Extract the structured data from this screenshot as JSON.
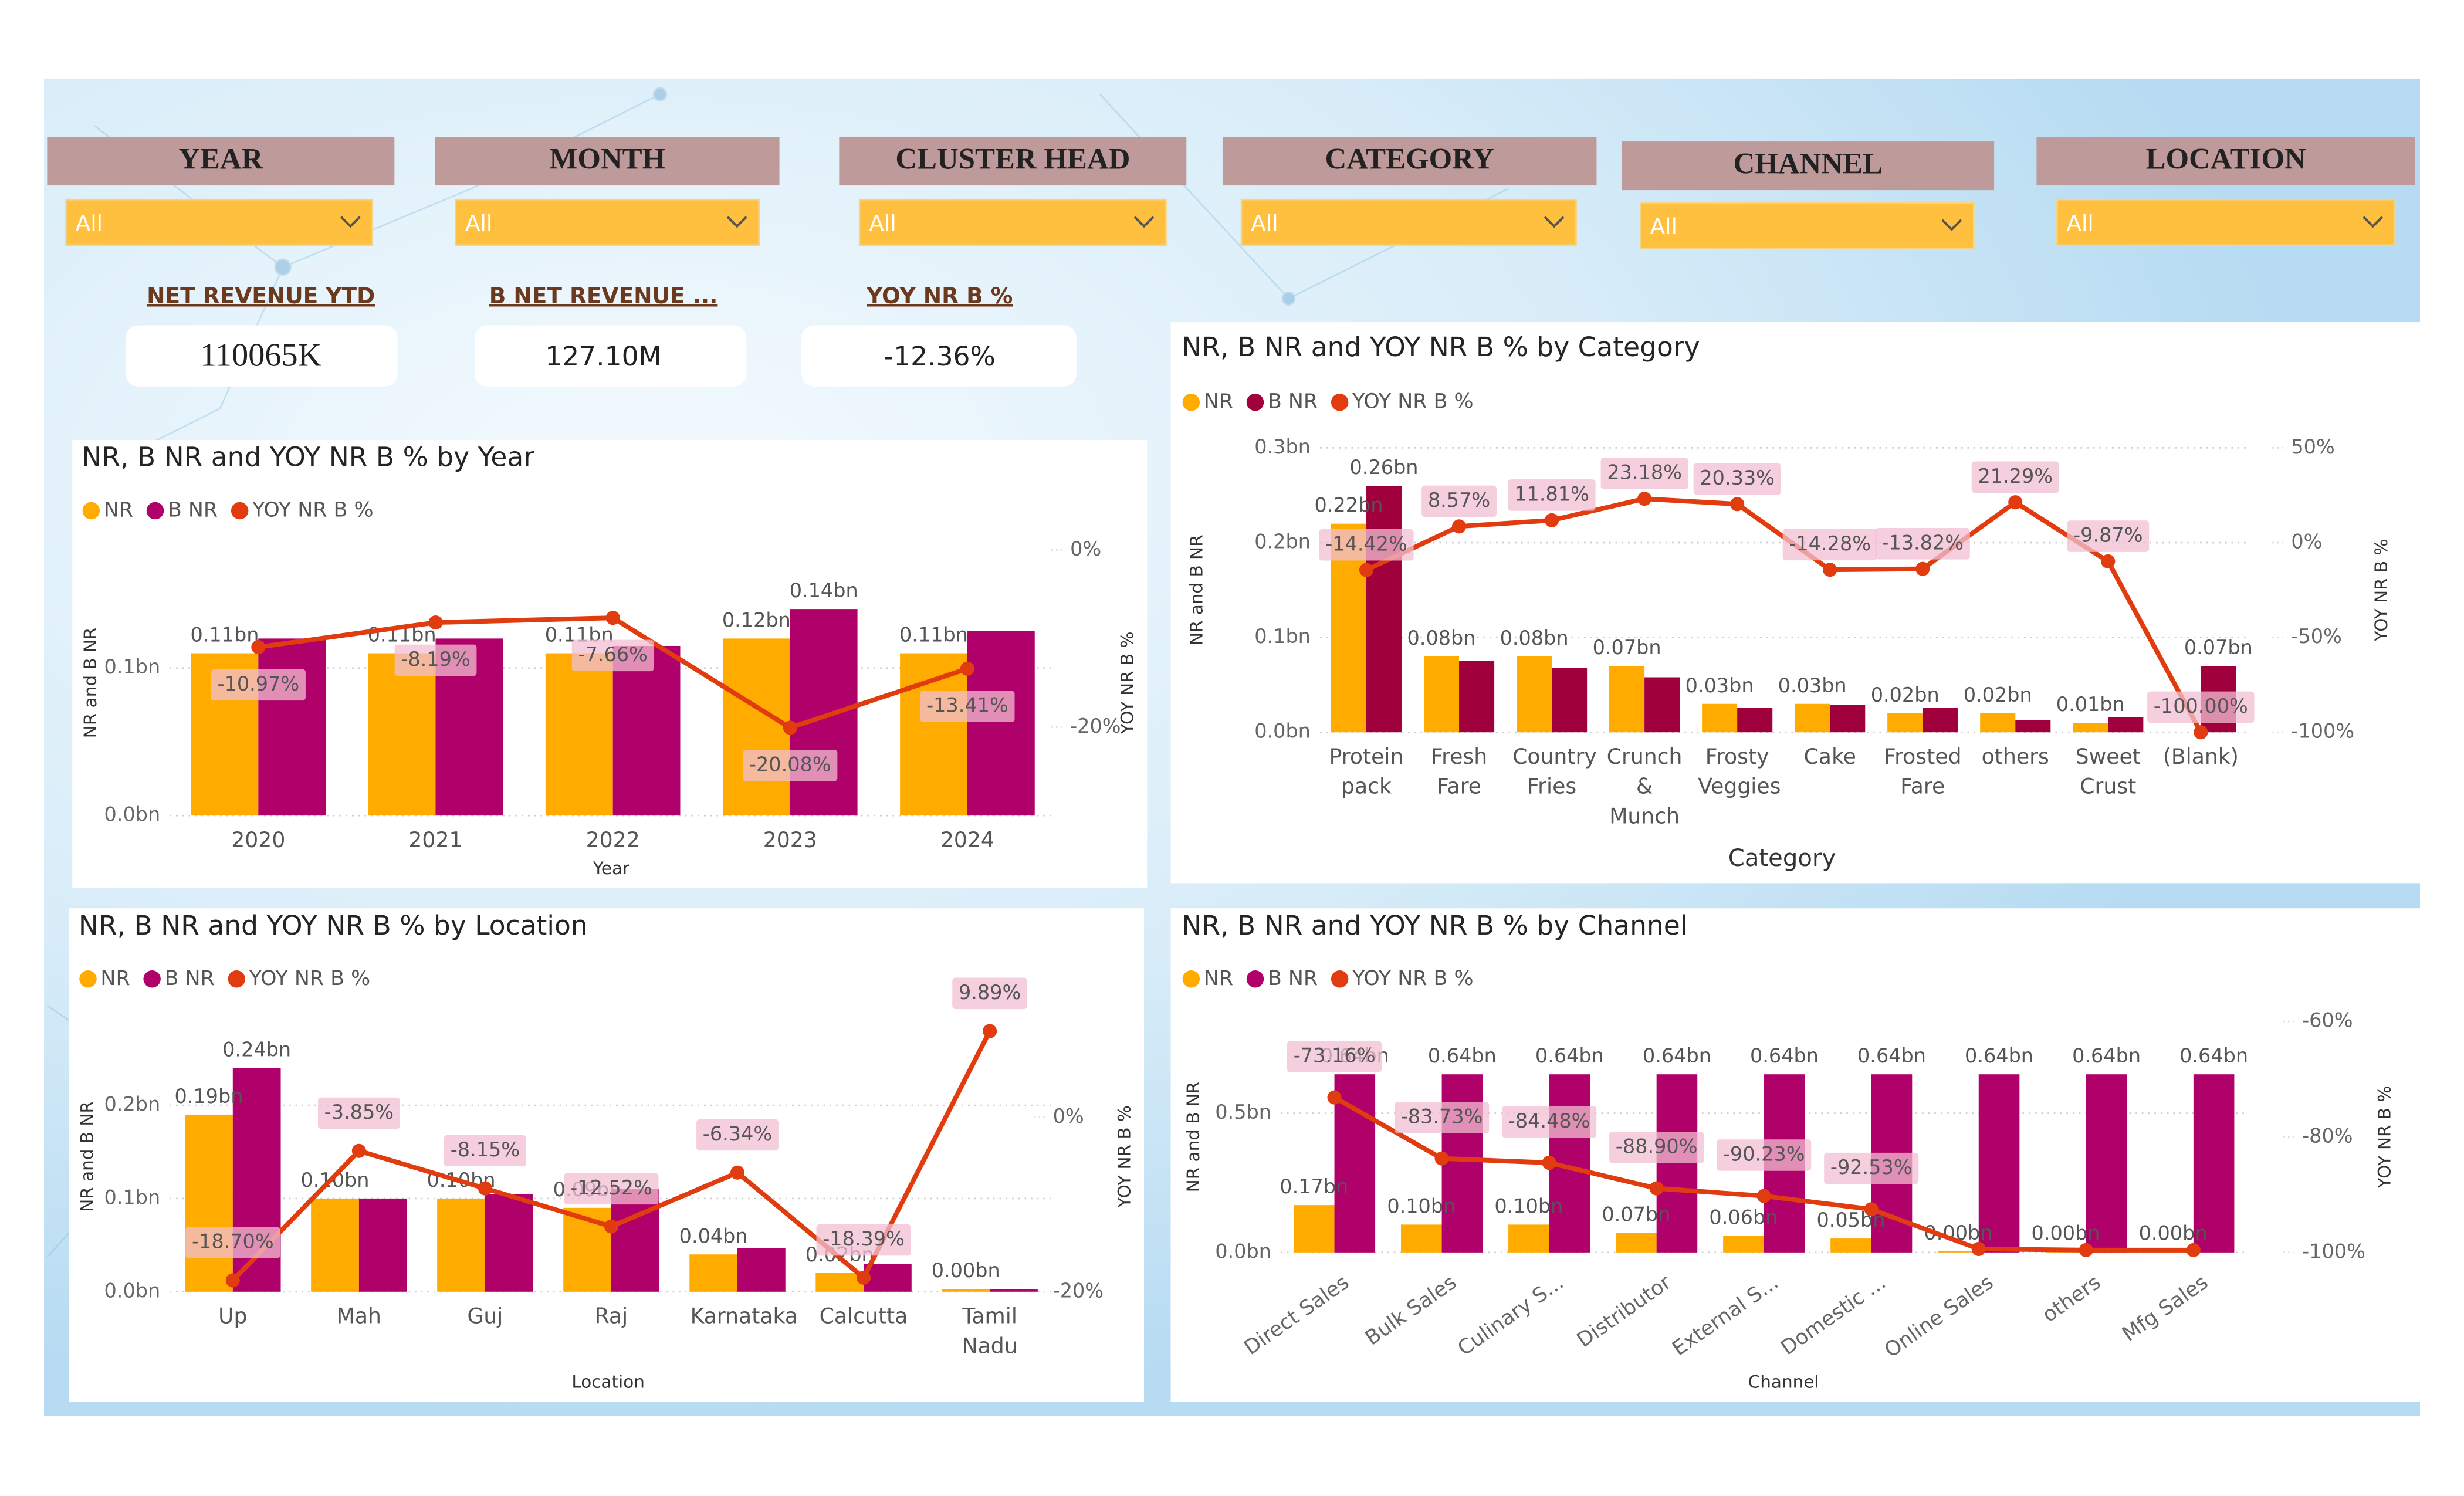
{
  "filters": [
    {
      "label": "YEAR",
      "value": "All"
    },
    {
      "label": "MONTH",
      "value": "All"
    },
    {
      "label": "CLUSTER HEAD",
      "value": "All"
    },
    {
      "label": "CATEGORY",
      "value": "All"
    },
    {
      "label": "CHANNEL",
      "value": "All"
    },
    {
      "label": "LOCATION",
      "value": "All"
    }
  ],
  "kpis": [
    {
      "label": "NET REVENUE YTD",
      "value": "110065K"
    },
    {
      "label": "B NET REVENUE ...",
      "value": "127.10M"
    },
    {
      "label": "YOY NR B %",
      "value": "-12.36%"
    }
  ],
  "chart_data": [
    {
      "type": "combo",
      "title": "NR, B NR and YOY NR B % by Year",
      "x_label": "Year",
      "y_label": "NR and B NR",
      "y2_label": "YOY NR B %",
      "categories": [
        "2020",
        "2021",
        "2022",
        "2023",
        "2024"
      ],
      "series": [
        {
          "name": "NR",
          "color": "#FFAB00",
          "values": [
            0.11,
            0.11,
            0.11,
            0.12,
            0.11
          ],
          "value_labels": [
            "0.11bn",
            "0.11bn",
            "0.11bn",
            "0.12bn",
            "0.11bn"
          ]
        },
        {
          "name": "B NR",
          "color": "#B0006A",
          "values": [
            0.12,
            0.12,
            0.115,
            0.14,
            0.125
          ],
          "value_labels": [
            null,
            null,
            null,
            "0.14bn",
            null
          ]
        },
        {
          "name": "YOY NR B %",
          "color": "#E03C0F",
          "axis": "y2",
          "values": [
            -10.97,
            -8.19,
            -7.66,
            -20.08,
            -13.41
          ],
          "value_labels": [
            "-10.97%",
            "-8.19%",
            "-7.66%",
            "-20.08%",
            "-13.41%"
          ]
        }
      ],
      "ylim": [
        0,
        0.18
      ],
      "yticks": [
        {
          "value": 0,
          "label": "0.0bn"
        },
        {
          "value": 0.1,
          "label": "0.1bn"
        }
      ],
      "y2lim": [
        -30,
        0
      ],
      "y2ticks": [
        {
          "value": 0,
          "label": "0%"
        },
        {
          "value": -20,
          "label": "-20%"
        }
      ],
      "grid": true
    },
    {
      "type": "combo",
      "title": "NR, B NR and YOY NR B % by Category",
      "x_label": "Category",
      "y_label": "NR and B NR",
      "y2_label": "YOY NR B %",
      "categories": [
        "Protein pack",
        "Fresh Fare",
        "Country Fries",
        "Crunch & Munch",
        "Frosty Veggies",
        "Cake",
        "Frosted Fare",
        "others",
        "Sweet Crust",
        "(Blank)"
      ],
      "series": [
        {
          "name": "NR",
          "color": "#FFAB00",
          "values": [
            0.22,
            0.08,
            0.08,
            0.07,
            0.03,
            0.03,
            0.02,
            0.02,
            0.01,
            null
          ],
          "value_labels": [
            "0.22bn",
            "0.08bn",
            "0.08bn",
            "0.07bn",
            "0.03bn",
            "0.03bn",
            "0.02bn",
            "0.02bn",
            "0.01bn",
            null
          ]
        },
        {
          "name": "B NR",
          "color": "#A0003C",
          "values": [
            0.26,
            0.075,
            0.068,
            0.058,
            0.026,
            0.029,
            0.026,
            0.013,
            0.016,
            0.07
          ],
          "value_labels": [
            "0.26bn",
            null,
            null,
            null,
            null,
            null,
            null,
            null,
            null,
            "0.07bn"
          ]
        },
        {
          "name": "YOY NR B %",
          "color": "#E03C0F",
          "axis": "y2",
          "values": [
            -14.42,
            8.57,
            11.81,
            23.18,
            20.33,
            -14.28,
            -13.82,
            21.29,
            -9.87,
            -100
          ],
          "value_labels": [
            "-14.42%",
            "8.57%",
            "11.81%",
            "23.18%",
            "20.33%",
            "-14.28%",
            "-13.82%",
            "21.29%",
            "-9.87%",
            "-100.00%"
          ]
        }
      ],
      "ylim": [
        0,
        0.3
      ],
      "yticks": [
        {
          "value": 0,
          "label": "0.0bn"
        },
        {
          "value": 0.1,
          "label": "0.1bn"
        },
        {
          "value": 0.2,
          "label": "0.2bn"
        },
        {
          "value": 0.3,
          "label": "0.3bn"
        }
      ],
      "y2lim": [
        -100,
        50
      ],
      "y2ticks": [
        {
          "value": 50,
          "label": "50%"
        },
        {
          "value": 0,
          "label": "0%"
        },
        {
          "value": -50,
          "label": "-50%"
        },
        {
          "value": -100,
          "label": "-100%"
        }
      ],
      "grid": true
    },
    {
      "type": "combo",
      "title": "NR, B NR and YOY NR B % by Location",
      "x_label": "Location",
      "y_label": "NR and B NR",
      "y2_label": "YOY NR B %",
      "categories": [
        "Up",
        "Mah",
        "Guj",
        "Raj",
        "Karnataka",
        "Calcutta",
        "Tamil Nadu"
      ],
      "series": [
        {
          "name": "NR",
          "color": "#FFAB00",
          "values": [
            0.19,
            0.1,
            0.1,
            0.09,
            0.04,
            0.02,
            0.003
          ],
          "value_labels": [
            "0.19bn",
            "0.10bn",
            "0.10bn",
            "0.09bn",
            "0.04bn",
            "0.02bn",
            "0.00bn"
          ]
        },
        {
          "name": "B NR",
          "color": "#B0006A",
          "values": [
            0.24,
            0.1,
            0.105,
            0.11,
            0.047,
            0.03,
            0.003
          ],
          "value_labels": [
            "0.24bn",
            null,
            null,
            null,
            null,
            null,
            null
          ]
        },
        {
          "name": "YOY NR B %",
          "color": "#E03C0F",
          "axis": "y2",
          "values": [
            -18.7,
            -3.85,
            -8.15,
            -12.52,
            -6.34,
            -18.39,
            9.89
          ],
          "value_labels": [
            "-18.70%",
            "-3.85%",
            "-8.15%",
            "-12.52%",
            "-6.34%",
            "-18.39%",
            "9.89%"
          ]
        }
      ],
      "ylim": [
        0,
        0.29
      ],
      "yticks": [
        {
          "value": 0,
          "label": "0.0bn"
        },
        {
          "value": 0.1,
          "label": "0.1bn"
        },
        {
          "value": 0.2,
          "label": "0.2bn"
        }
      ],
      "y2lim": [
        -20,
        11
      ],
      "y2ticks": [
        {
          "value": 0,
          "label": "0%"
        },
        {
          "value": -20,
          "label": "-20%"
        }
      ],
      "grid": true
    },
    {
      "type": "combo",
      "title": "NR, B NR and YOY NR B % by Channel",
      "x_label": "Channel",
      "y_label": "NR and B NR",
      "y2_label": "YOY NR B %",
      "categories": [
        "Direct Sales",
        "Bulk Sales",
        "Culinary S...",
        "Distributor",
        "External S...",
        "Domestic ...",
        "Online Sales",
        "others",
        "Mfg Sales"
      ],
      "series": [
        {
          "name": "NR",
          "color": "#FFAB00",
          "values": [
            0.17,
            0.1,
            0.1,
            0.07,
            0.06,
            0.05,
            0.004,
            0.003,
            0.003
          ],
          "value_labels": [
            "0.17bn",
            "0.10bn",
            "0.10bn",
            "0.07bn",
            "0.06bn",
            "0.05bn",
            "0.00bn",
            "0.00bn",
            "0.00bn"
          ]
        },
        {
          "name": "B NR",
          "color": "#B0006A",
          "values": [
            0.64,
            0.64,
            0.64,
            0.64,
            0.64,
            0.64,
            0.64,
            0.64,
            0.64
          ],
          "value_labels": [
            "0.64bn",
            "0.64bn",
            "0.64bn",
            "0.64bn",
            "0.64bn",
            "0.64bn",
            "0.64bn",
            "0.64bn",
            "0.64bn"
          ]
        },
        {
          "name": "YOY NR B %",
          "color": "#E03C0F",
          "axis": "y2",
          "values": [
            -73.16,
            -83.73,
            -84.48,
            -88.9,
            -90.23,
            -92.53,
            -99.4,
            -99.6,
            -99.6
          ],
          "value_labels": [
            "-73.16%",
            "-83.73%",
            "-84.48%",
            "-88.90%",
            "-90.23%",
            "-92.53%",
            null,
            null,
            null
          ]
        }
      ],
      "ylim": [
        0,
        0.83
      ],
      "yticks": [
        {
          "value": 0,
          "label": "0.0bn"
        },
        {
          "value": 0.5,
          "label": "0.5bn"
        }
      ],
      "y2lim": [
        -100,
        -60
      ],
      "y2ticks": [
        {
          "value": -60,
          "label": "-60%"
        },
        {
          "value": -80,
          "label": "-80%"
        },
        {
          "value": -100,
          "label": "-100%"
        }
      ],
      "grid": true
    }
  ]
}
